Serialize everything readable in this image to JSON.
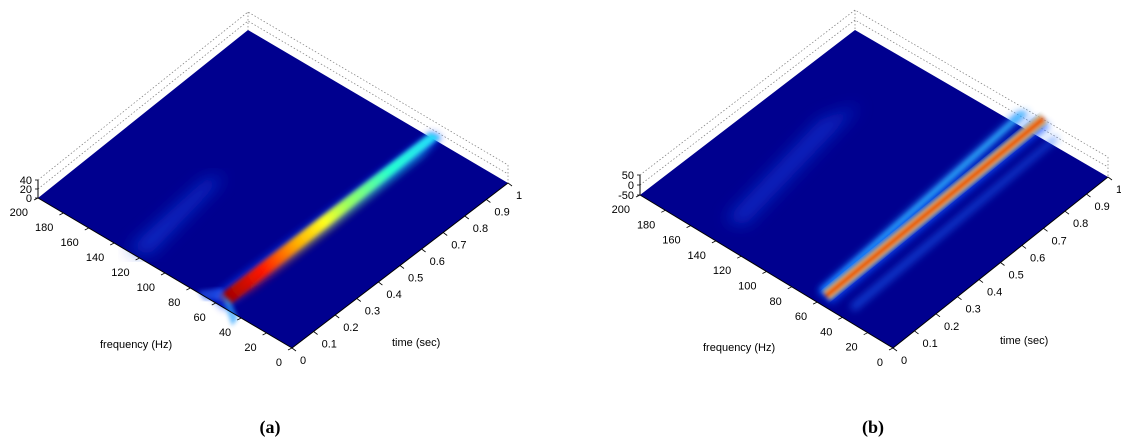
{
  "chart_data": [
    {
      "type": "surface",
      "panel_label": "(a)",
      "xlabel": "time (sec)",
      "ylabel": "frequency (Hz)",
      "zlabel": "",
      "x_ticks": [
        "0",
        "0.1",
        "0.2",
        "0.3",
        "0.4",
        "0.5",
        "0.6",
        "0.7",
        "0.8",
        "0.9",
        "1"
      ],
      "y_ticks": [
        "0",
        "20",
        "40",
        "60",
        "80",
        "100",
        "120",
        "140",
        "160",
        "180",
        "200"
      ],
      "z_ticks": [
        "0",
        "20",
        "40"
      ],
      "xlim": [
        0,
        1
      ],
      "ylim": [
        0,
        200
      ],
      "zlim": [
        0,
        40
      ],
      "colormap": "jet",
      "ridge": {
        "freq_start": 75,
        "freq_end": 80,
        "amp_start": 1.0,
        "amp_end": 0.4,
        "width": 5
      },
      "faint_ridge": {
        "freq": 140,
        "amp": 0.15
      },
      "view": "top-down"
    },
    {
      "type": "surface",
      "panel_label": "(b)",
      "xlabel": "time (sec)",
      "ylabel": "frequency (Hz)",
      "zlabel": "",
      "x_ticks": [
        "0",
        "0.1",
        "0.2",
        "0.3",
        "0.4",
        "0.5",
        "0.6",
        "0.7",
        "0.8",
        "0.9",
        "1"
      ],
      "y_ticks": [
        "0",
        "20",
        "40",
        "60",
        "80",
        "100",
        "120",
        "140",
        "160",
        "180",
        "200"
      ],
      "z_ticks": [
        "-50",
        "0",
        "50"
      ],
      "xlim": [
        0,
        1
      ],
      "ylim": [
        0,
        200
      ],
      "zlim": [
        -50,
        50
      ],
      "colormap": "jet",
      "ridge": {
        "freq_start": 57,
        "freq_end": 57,
        "amp_start": 1.0,
        "amp_end": 1.0,
        "width": 3
      },
      "side_ridge": {
        "freq": 85,
        "amp": 0.35
      },
      "faint_ridge": {
        "freq": 150,
        "amp": 0.12
      },
      "view": "top-down"
    }
  ]
}
